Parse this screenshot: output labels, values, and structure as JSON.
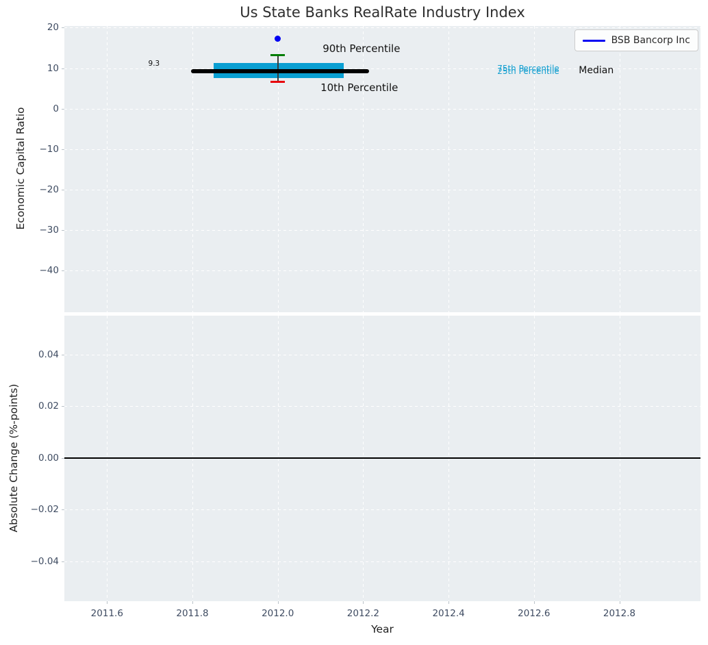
{
  "title": "Us State Banks RealRate Industry Index",
  "legend": {
    "label": "BSB Bancorp Inc",
    "line_color": "#0000f2",
    "position": "upper right"
  },
  "colors": {
    "figure_background": "#ffffff",
    "axes_background": "#eaeef1",
    "grid": "#ffffff",
    "tick_label": "#3e4b61",
    "median_line": "#000000",
    "iqr_band": "#0a9fd2",
    "company_point": "#0000f2",
    "p90_cap": "#007d02",
    "p10_cap": "#e8000b",
    "whisker": "#3a3a3a",
    "zero_line": "#000000",
    "percentile_text": "#149fd0"
  },
  "chart_data": [
    {
      "type": "scatter",
      "panel": "top",
      "title": "Us State Banks RealRate Industry Index",
      "ylabel": "Economic Capital Ratio",
      "ylim": [
        -50.3,
        20.4
      ],
      "xlim": [
        2011.5,
        2012.99
      ],
      "grid": true,
      "yticks": [
        {
          "v": 20,
          "label": "20"
        },
        {
          "v": 10,
          "label": "10"
        },
        {
          "v": 0,
          "label": "0"
        },
        {
          "v": -10,
          "label": "−10"
        },
        {
          "v": -20,
          "label": "−20"
        },
        {
          "v": -30,
          "label": "−30"
        },
        {
          "v": -40,
          "label": "−40"
        }
      ],
      "series": {
        "median_line": {
          "name": "Median",
          "value": 9.3,
          "value_label": "9.3",
          "x_start": 2011.797,
          "x_end": 2012.213
        },
        "iqr_band": {
          "name": "25th-75th Percentile band",
          "x_start": 2011.85,
          "x_end": 2012.155,
          "p25": 7.6,
          "p75": 11.2
        },
        "whisker": {
          "x": 2012.0,
          "p90": 13.2,
          "p10": 6.6
        },
        "company_point": {
          "name": "BSB Bancorp Inc",
          "x": 2012.0,
          "y": 17.2
        }
      },
      "annotations": [
        {
          "text": "90th Percentile",
          "x": 2012.105,
          "y": 14.8,
          "ha": "left",
          "style": "lg"
        },
        {
          "text": "10th Percentile",
          "x": 2012.1,
          "y": 5.2,
          "ha": "left",
          "style": "lg"
        },
        {
          "text": "9.3",
          "x": 2011.71,
          "y": 11.1,
          "ha": "center",
          "style": "sm"
        },
        {
          "text": "75th Percentile",
          "x": 2012.514,
          "y": 9.9,
          "ha": "left",
          "style": "cyan"
        },
        {
          "text": "25th Percentile",
          "x": 2012.514,
          "y": 9.3,
          "ha": "left",
          "style": "cyan"
        },
        {
          "text": "Median",
          "x": 2012.705,
          "y": 9.4,
          "ha": "left",
          "style": "med"
        }
      ]
    },
    {
      "type": "line",
      "panel": "bottom",
      "ylabel": "Absolute Change (%-points)",
      "xlabel": "Year",
      "ylim": [
        -0.0555,
        0.0551
      ],
      "xlim": [
        2011.5,
        2012.99
      ],
      "grid": true,
      "zero_line": 0.0,
      "yticks": [
        {
          "v": 0.04,
          "label": "0.04"
        },
        {
          "v": 0.02,
          "label": "0.02"
        },
        {
          "v": 0.0,
          "label": "0.00"
        },
        {
          "v": -0.02,
          "label": "−0.02"
        },
        {
          "v": -0.04,
          "label": "−0.04"
        }
      ],
      "xticks": [
        {
          "v": 2011.6,
          "label": "2011.6"
        },
        {
          "v": 2011.8,
          "label": "2011.8"
        },
        {
          "v": 2012.0,
          "label": "2012.0"
        },
        {
          "v": 2012.2,
          "label": "2012.2"
        },
        {
          "v": 2012.4,
          "label": "2012.4"
        },
        {
          "v": 2012.6,
          "label": "2012.6"
        },
        {
          "v": 2012.8,
          "label": "2012.8"
        }
      ]
    }
  ]
}
